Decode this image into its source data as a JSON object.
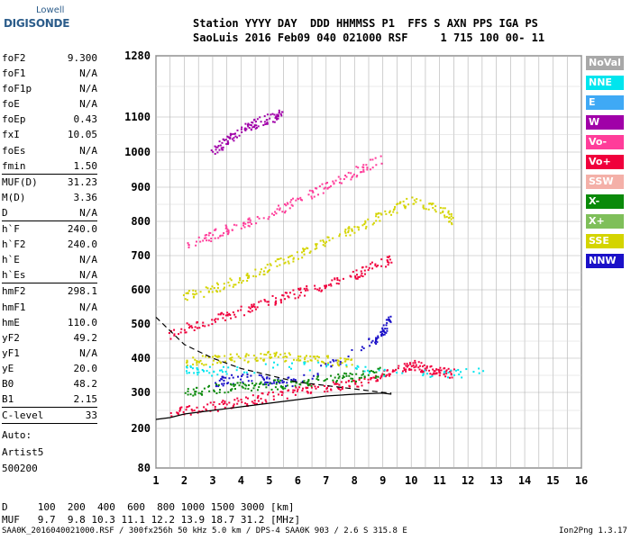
{
  "logo": {
    "line1": "Lowell",
    "line2": "DIGISONDE"
  },
  "header": {
    "line1": "Station YYYY DAY  DDD HHMMSS P1  FFS S AXN PPS IGA PS",
    "line2": "SaoLuis 2016 Feb09 040 021000 RSF     1 715 100 00- 11"
  },
  "params": [
    {
      "label": "foF2",
      "value": "9.300"
    },
    {
      "label": "foF1",
      "value": "N/A"
    },
    {
      "label": "foF1p",
      "value": "N/A"
    },
    {
      "label": "foE",
      "value": "N/A"
    },
    {
      "label": "foEp",
      "value": "0.43"
    },
    {
      "label": "fxI",
      "value": "10.05"
    },
    {
      "label": "foEs",
      "value": "N/A"
    },
    {
      "label": "fmin",
      "value": "1.50"
    },
    {
      "label": "MUF(D)",
      "value": "31.23"
    },
    {
      "label": "M(D)",
      "value": "3.36"
    },
    {
      "label": "D",
      "value": "N/A"
    },
    {
      "label": "h`F",
      "value": "240.0"
    },
    {
      "label": "h`F2",
      "value": "240.0"
    },
    {
      "label": "h`E",
      "value": "N/A"
    },
    {
      "label": "h`Es",
      "value": "N/A"
    },
    {
      "label": "hmF2",
      "value": "298.1"
    },
    {
      "label": "hmF1",
      "value": "N/A"
    },
    {
      "label": "hmE",
      "value": "110.0"
    },
    {
      "label": "yF2",
      "value": "49.2"
    },
    {
      "label": "yF1",
      "value": "N/A"
    },
    {
      "label": "yE",
      "value": "20.0"
    },
    {
      "label": "B0",
      "value": "48.2"
    },
    {
      "label": "B1",
      "value": "2.15"
    },
    {
      "label": "C-level",
      "value": "33"
    }
  ],
  "auto": {
    "line1": "Auto:",
    "line2": "Artist5",
    "line3": "500200"
  },
  "legend": [
    {
      "label": "NoVal",
      "color": "#a8a8a8"
    },
    {
      "label": "NNE",
      "color": "#00e5ee"
    },
    {
      "label": "E",
      "color": "#3fa9f5"
    },
    {
      "label": "W",
      "color": "#a000a8"
    },
    {
      "label": "Vo-",
      "color": "#ff3d9a"
    },
    {
      "label": "Vo+",
      "color": "#f0003c"
    },
    {
      "label": "SSW",
      "color": "#f4b0a8"
    },
    {
      "label": "X-",
      "color": "#0a8a0a"
    },
    {
      "label": "X+",
      "color": "#7fbf5a"
    },
    {
      "label": "SSE",
      "color": "#d4d400"
    },
    {
      "label": "NNW",
      "color": "#1a10c8"
    }
  ],
  "footer": {
    "d_line": "D     100  200  400  600  800 1000 1500 3000 [km]",
    "muf_line": "MUF   9.7  9.8 10.3 11.1 12.2 13.9 18.7 31.2 [MHz]",
    "source": "SAA0K_2016040021000.RSF / 300fx256h 50 kHz 5.0 km / DPS-4 SAA0K 903 / 2.6 S 315.8 E",
    "version": "Ion2Png 1.3.17"
  },
  "chart_data": {
    "type": "scatter",
    "xlim": [
      1,
      16
    ],
    "ylim": [
      80,
      1280
    ],
    "x_ticks": [
      "1",
      "2",
      "3",
      "4",
      "5",
      "6",
      "7",
      "8",
      "9",
      "10",
      "11",
      "12",
      "13",
      "14",
      "15",
      "16"
    ],
    "y_ticks": [
      "80",
      "200",
      "300",
      "400",
      "500",
      "600",
      "700",
      "800",
      "900",
      "1000",
      "1100",
      "1280"
    ],
    "grid": true,
    "traces": [
      {
        "name": "Vo+",
        "color": "#f0003c",
        "points": [
          [
            1.5,
            240
          ],
          [
            2.5,
            255
          ],
          [
            3.5,
            265
          ],
          [
            4.5,
            280
          ],
          [
            5.5,
            295
          ],
          [
            6.5,
            310
          ],
          [
            7.5,
            320
          ],
          [
            8.5,
            335
          ],
          [
            9.3,
            360
          ],
          [
            10,
            380
          ],
          [
            10.5,
            370
          ],
          [
            11,
            360
          ],
          [
            11.5,
            355
          ]
        ]
      },
      {
        "name": "Vo+",
        "color": "#f0003c",
        "points": [
          [
            1.5,
            470
          ],
          [
            2.5,
            500
          ],
          [
            3.5,
            525
          ],
          [
            4.5,
            550
          ],
          [
            5.5,
            580
          ],
          [
            6.5,
            600
          ],
          [
            7.5,
            625
          ],
          [
            8.5,
            660
          ],
          [
            9.3,
            690
          ]
        ]
      },
      {
        "name": "SSE",
        "color": "#d4d400",
        "points": [
          [
            2,
            580
          ],
          [
            3,
            600
          ],
          [
            4,
            630
          ],
          [
            5,
            665
          ],
          [
            6,
            700
          ],
          [
            7,
            740
          ],
          [
            8,
            775
          ],
          [
            9,
            820
          ],
          [
            10,
            860
          ],
          [
            11,
            840
          ],
          [
            11.5,
            800
          ]
        ]
      },
      {
        "name": "SSE",
        "color": "#d4d400",
        "points": [
          [
            2,
            390
          ],
          [
            3,
            395
          ],
          [
            4,
            400
          ],
          [
            5,
            405
          ],
          [
            6,
            400
          ],
          [
            7,
            395
          ],
          [
            8,
            380
          ]
        ]
      },
      {
        "name": "Vo-",
        "color": "#ff3d9a",
        "points": [
          [
            2,
            720
          ],
          [
            3,
            760
          ],
          [
            4,
            790
          ],
          [
            5,
            820
          ],
          [
            6,
            860
          ],
          [
            7,
            900
          ],
          [
            8,
            940
          ],
          [
            9,
            980
          ]
        ]
      },
      {
        "name": "W",
        "color": "#a000a8",
        "points": [
          [
            3,
            1000
          ],
          [
            3.5,
            1030
          ],
          [
            4,
            1060
          ],
          [
            4.5,
            1080
          ],
          [
            5,
            1095
          ],
          [
            5.5,
            1110
          ]
        ]
      },
      {
        "name": "NNW",
        "color": "#1a10c8",
        "points": [
          [
            3,
            330
          ],
          [
            4,
            340
          ],
          [
            5,
            335
          ],
          [
            6,
            330
          ],
          [
            8.5,
            440
          ],
          [
            9,
            470
          ],
          [
            9.3,
            520
          ]
        ]
      },
      {
        "name": "X-",
        "color": "#0a8a0a",
        "points": [
          [
            2,
            300
          ],
          [
            3,
            310
          ],
          [
            4,
            315
          ],
          [
            5,
            320
          ],
          [
            6,
            330
          ],
          [
            7,
            335
          ],
          [
            8,
            345
          ],
          [
            9,
            360
          ]
        ]
      },
      {
        "name": "NNE",
        "color": "#00e5ee",
        "points": [
          [
            2,
            370
          ],
          [
            3,
            360
          ],
          [
            6,
            380
          ],
          [
            10.2,
            350
          ],
          [
            12.5,
            360
          ]
        ]
      }
    ],
    "model_profile": {
      "x": [
        1,
        1.5,
        2,
        3,
        4,
        5,
        6,
        7,
        8,
        9,
        9.3
      ],
      "y": [
        225,
        230,
        240,
        250,
        260,
        270,
        280,
        290,
        295,
        298,
        295
      ]
    },
    "model_profile_dashed": {
      "x": [
        1,
        1.5,
        2,
        3,
        4,
        5,
        6,
        7,
        8,
        9,
        9.3
      ],
      "y": [
        520,
        480,
        440,
        400,
        370,
        350,
        330,
        320,
        310,
        300,
        298
      ]
    }
  }
}
